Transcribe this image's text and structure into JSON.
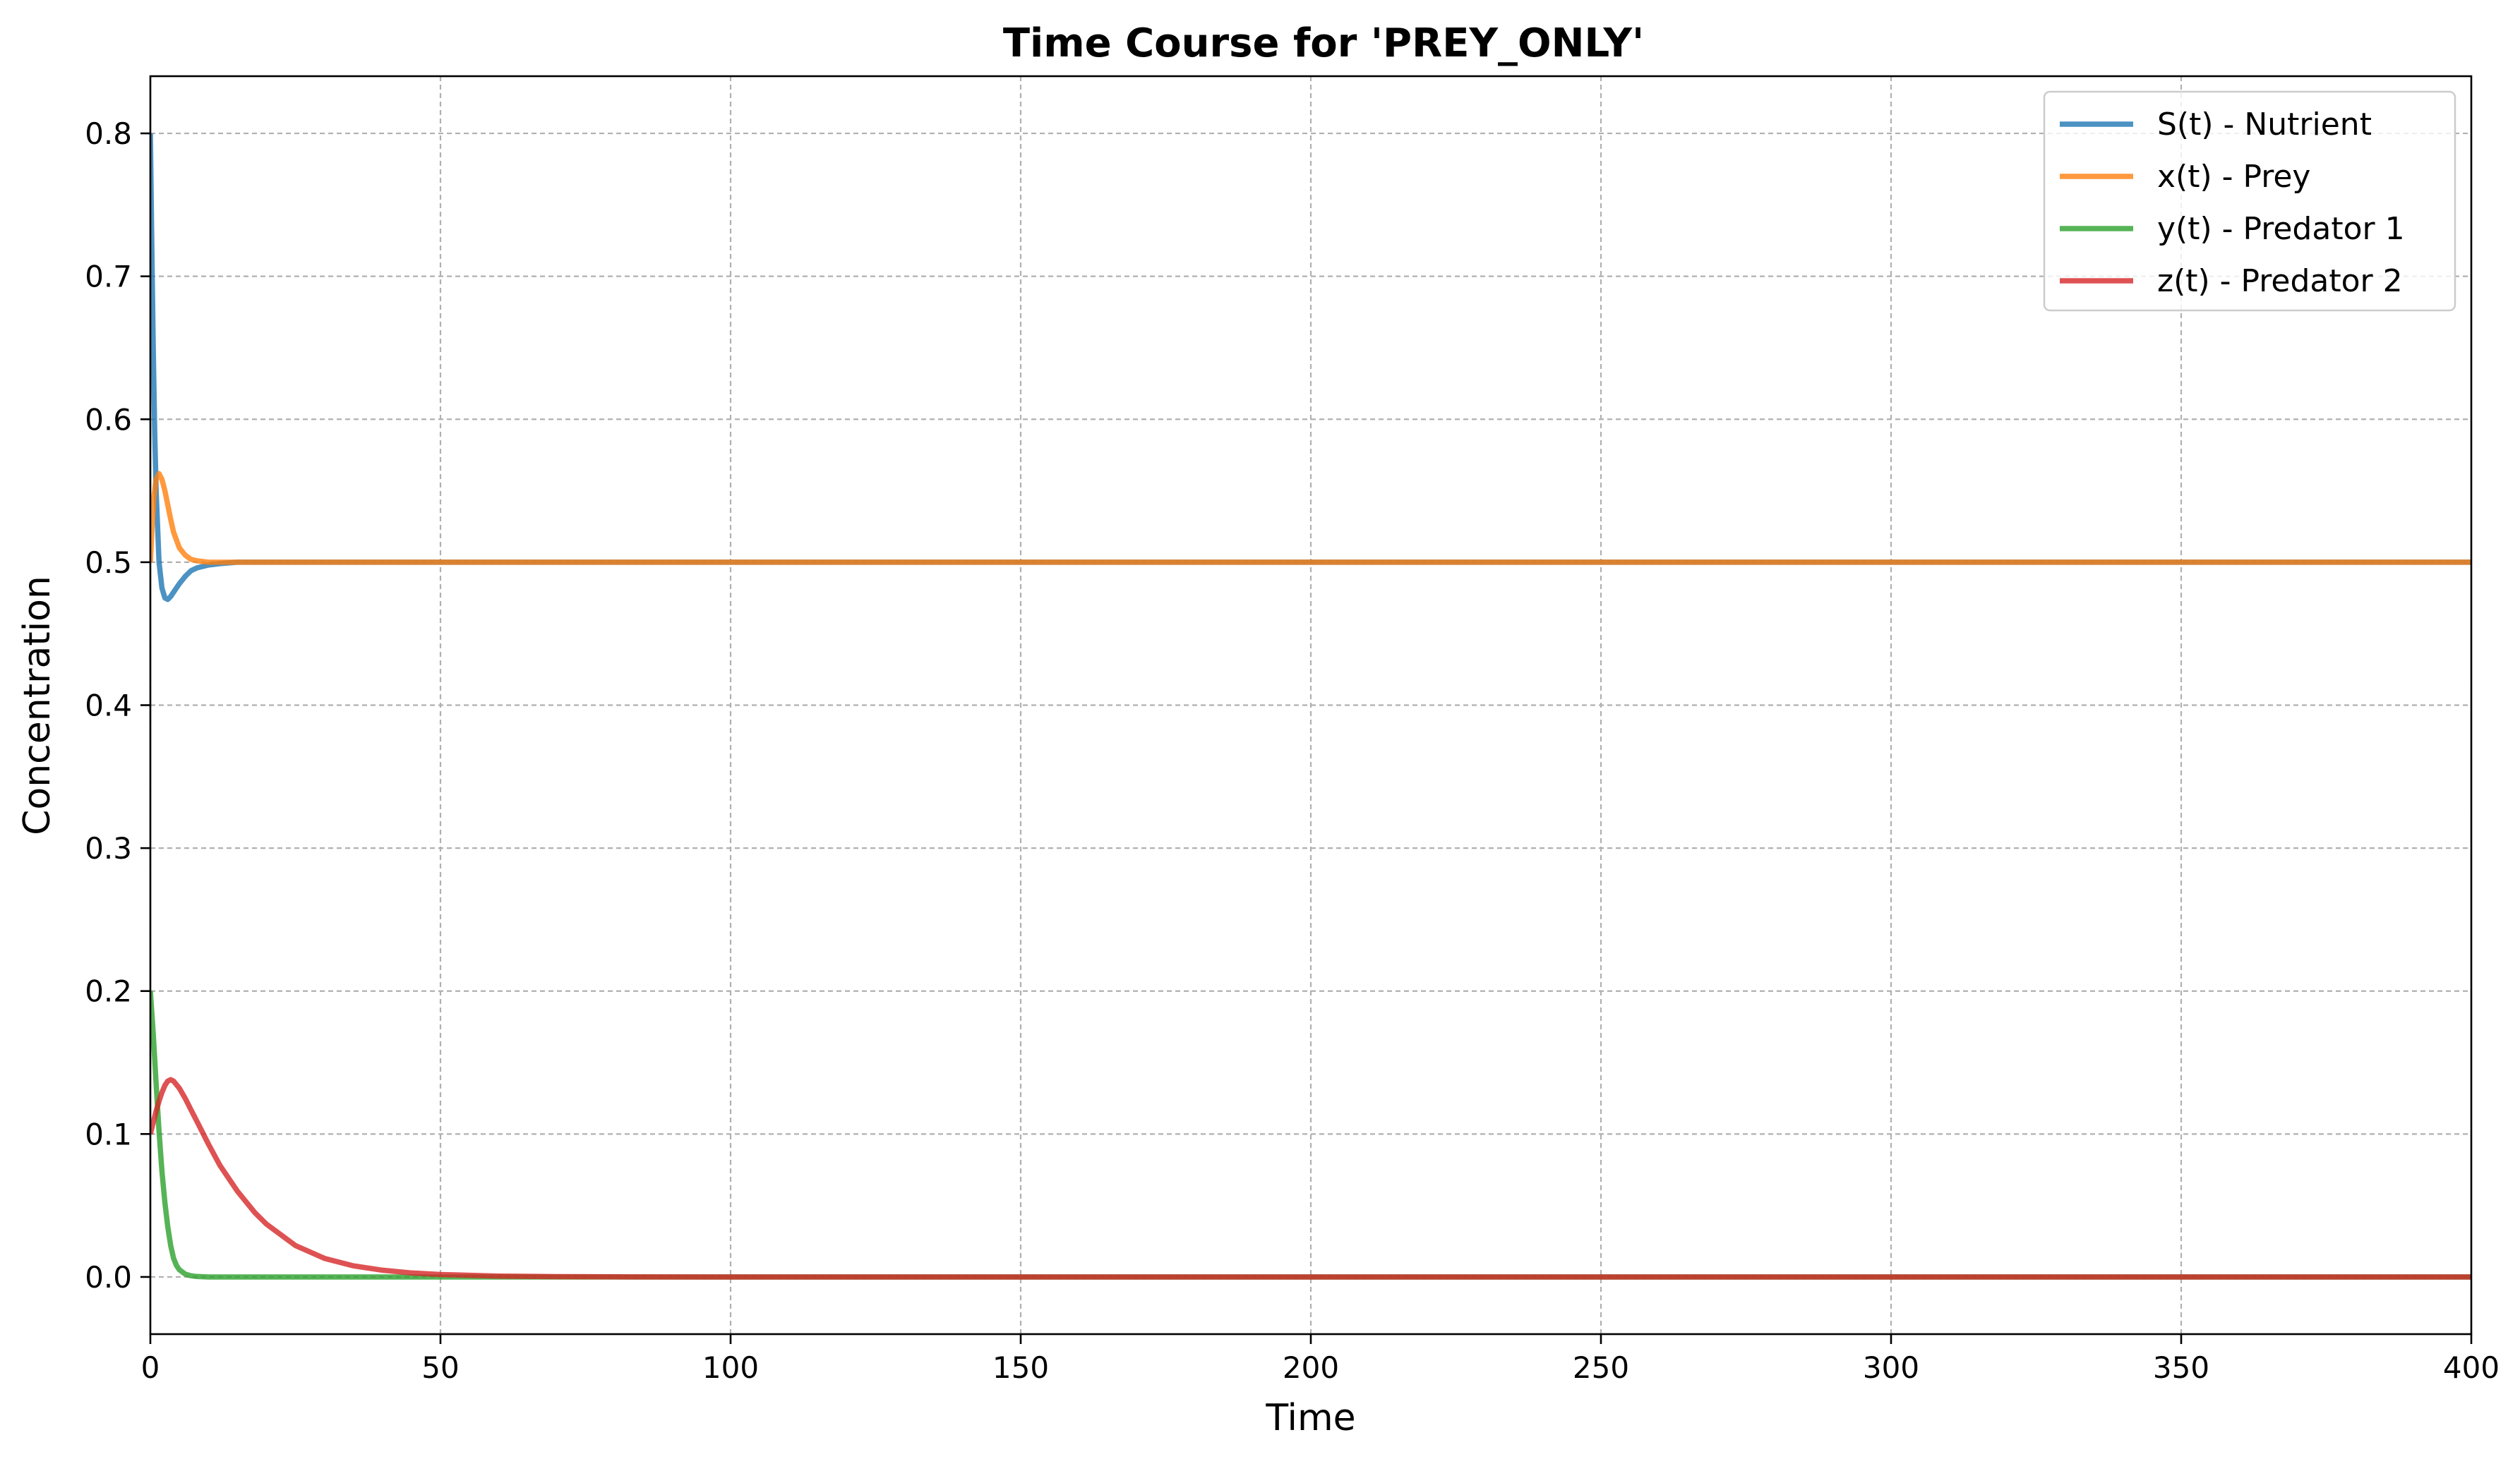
{
  "chart_data": {
    "type": "line",
    "title": "Time Course for 'PREY_ONLY'",
    "xlabel": "Time",
    "ylabel": "Concentration",
    "xlim": [
      0,
      400
    ],
    "ylim": [
      -0.04,
      0.84
    ],
    "xticks": [
      0,
      50,
      100,
      150,
      200,
      250,
      300,
      350,
      400
    ],
    "xtick_labels": [
      "0",
      "50",
      "100",
      "150",
      "200",
      "250",
      "300",
      "350",
      "400"
    ],
    "yticks": [
      0.0,
      0.1,
      0.2,
      0.3,
      0.4,
      0.5,
      0.6,
      0.7,
      0.8
    ],
    "ytick_labels": [
      "0.0",
      "0.1",
      "0.2",
      "0.3",
      "0.4",
      "0.5",
      "0.6",
      "0.7",
      "0.8"
    ],
    "grid": true,
    "legend_position": "top-right",
    "series": [
      {
        "name": "S(t) - Nutrient",
        "color": "#1f77b4",
        "x": [
          0,
          0.25,
          0.5,
          0.75,
          1,
          1.5,
          2,
          2.5,
          3,
          3.5,
          4,
          5,
          6,
          7,
          8,
          10,
          12,
          15,
          20,
          30,
          50,
          100,
          200,
          300,
          400
        ],
        "y": [
          0.8,
          0.72,
          0.65,
          0.59,
          0.55,
          0.5,
          0.482,
          0.475,
          0.474,
          0.476,
          0.479,
          0.485,
          0.49,
          0.494,
          0.496,
          0.498,
          0.499,
          0.5,
          0.5,
          0.5,
          0.5,
          0.5,
          0.5,
          0.5,
          0.5
        ]
      },
      {
        "name": "x(t) - Prey",
        "color": "#ff7f0e",
        "x": [
          0,
          0.3,
          0.6,
          1,
          1.5,
          2,
          2.5,
          3,
          3.5,
          4,
          5,
          6,
          7,
          8,
          9,
          10,
          12,
          15,
          20,
          30,
          50,
          100,
          200,
          300,
          400
        ],
        "y": [
          0.5,
          0.525,
          0.545,
          0.558,
          0.562,
          0.558,
          0.55,
          0.54,
          0.53,
          0.521,
          0.51,
          0.505,
          0.502,
          0.501,
          0.5005,
          0.5,
          0.5,
          0.5,
          0.5,
          0.5,
          0.5,
          0.5,
          0.5,
          0.5,
          0.5
        ]
      },
      {
        "name": "y(t) - Predator 1",
        "color": "#2ca02c",
        "x": [
          0,
          0.5,
          1,
          1.5,
          2,
          2.5,
          3,
          3.5,
          4,
          4.5,
          5,
          6,
          7,
          8,
          10,
          15,
          20,
          50,
          100,
          200,
          300,
          400
        ],
        "y": [
          0.2,
          0.17,
          0.135,
          0.102,
          0.074,
          0.052,
          0.035,
          0.022,
          0.013,
          0.008,
          0.005,
          0.002,
          0.0008,
          0.0003,
          0.0,
          0.0,
          0.0,
          0.0,
          0.0,
          0.0,
          0.0,
          0.0
        ]
      },
      {
        "name": "z(t) - Predator 2",
        "color": "#d62728",
        "x": [
          0,
          0.5,
          1,
          1.5,
          2,
          2.5,
          3,
          3.5,
          4,
          5,
          6,
          7,
          8,
          10,
          12,
          15,
          18,
          20,
          25,
          30,
          35,
          40,
          45,
          50,
          60,
          70,
          80,
          100,
          150,
          200,
          300,
          400
        ],
        "y": [
          0.1,
          0.108,
          0.116,
          0.123,
          0.129,
          0.134,
          0.137,
          0.138,
          0.137,
          0.132,
          0.125,
          0.117,
          0.109,
          0.093,
          0.078,
          0.06,
          0.045,
          0.037,
          0.022,
          0.013,
          0.0078,
          0.0047,
          0.0028,
          0.0017,
          0.0006,
          0.0002,
          0.0001,
          0.0,
          0.0,
          0.0,
          0.0,
          0.0
        ]
      }
    ]
  }
}
